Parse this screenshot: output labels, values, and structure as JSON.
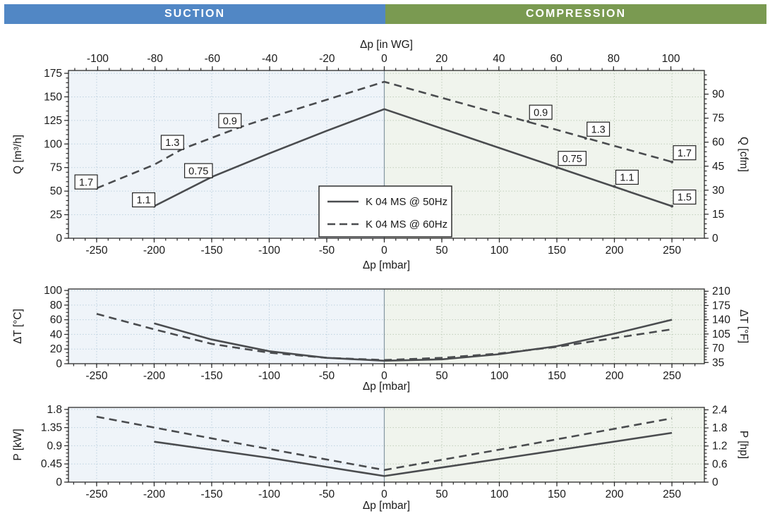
{
  "header": {
    "suction_label": "SUCTION",
    "compression_label": "COMPRESSION",
    "suction_color": "#5187c5",
    "compression_color": "#7a9a51"
  },
  "colors": {
    "line": "#4a4c4f",
    "spine": "#2b2b2b",
    "text": "#1a1a1a",
    "zero_line": "#8497a2",
    "suction_bg": "#eff4f9",
    "compression_bg": "#f0f4ed",
    "suction_grid": "#bdd1df",
    "compression_grid": "#bfcdba",
    "annotation_border": "#222222",
    "annotation_bg": "#ffffff"
  },
  "chart_data": [
    {
      "type": "line",
      "title": "",
      "xlabel": "Δp [mbar]",
      "xlabel_top": "Δp [in WG]",
      "ylabel_left": "Q [m³/h]",
      "ylabel_right": "Q [cfm]",
      "xlim": [
        -274.5,
        278.2
      ],
      "ylim": [
        0,
        178
      ],
      "x_ticks": [
        -250,
        -200,
        -150,
        -100,
        -50,
        0,
        50,
        100,
        150,
        200,
        250
      ],
      "x_minor_step": 10,
      "y_ticks": [
        0,
        25,
        50,
        75,
        100,
        125,
        150,
        175
      ],
      "y_minor_step": 5,
      "top_ticks_inwg": [
        -100,
        -80,
        -60,
        -40,
        -20,
        0,
        20,
        40,
        60,
        80,
        100
      ],
      "top_minor_step_inwg": 4,
      "inwg_to_mbar": 2.49089,
      "right_ticks_cfm": [
        0,
        15,
        30,
        45,
        60,
        75,
        90
      ],
      "right_minor_step_cfm": 3,
      "cfm_to_m3h": 1.699011,
      "grid": true,
      "legend": {
        "position": "center-bottom",
        "items": [
          {
            "label": "K 04 MS @ 50Hz",
            "style": "solid"
          },
          {
            "label": "K 04 MS @ 60Hz",
            "style": "dashed"
          }
        ]
      },
      "series": [
        {
          "name": "K 04 MS @ 50Hz",
          "style": "solid",
          "points": [
            [
              -200,
              34
            ],
            [
              -150,
              65
            ],
            [
              -100,
              90
            ],
            [
              -50,
              114
            ],
            [
              0,
              137
            ],
            [
              250,
              34
            ]
          ]
        },
        {
          "name": "K 04 MS @ 60Hz",
          "style": "dashed",
          "points": [
            [
              -250,
              53
            ],
            [
              -200,
              78
            ],
            [
              -175,
              95
            ],
            [
              -125,
              118
            ],
            [
              -100,
              128
            ],
            [
              0,
              166
            ],
            [
              250,
              81
            ]
          ]
        }
      ],
      "annotations": [
        {
          "label": "1.7",
          "x": -250,
          "y": 53,
          "side": "left"
        },
        {
          "label": "1.1",
          "x": -200,
          "y": 34,
          "side": "left"
        },
        {
          "label": "1.3",
          "x": -175,
          "y": 95,
          "side": "left"
        },
        {
          "label": "0.75",
          "x": -150,
          "y": 65,
          "side": "left"
        },
        {
          "label": "0.9",
          "x": -125,
          "y": 118,
          "side": "left"
        },
        {
          "label": "0.9",
          "x": 125,
          "y": 124,
          "side": "right"
        },
        {
          "label": "0.75",
          "x": 150,
          "y": 75,
          "side": "right"
        },
        {
          "label": "1.3",
          "x": 175,
          "y": 106,
          "side": "right"
        },
        {
          "label": "1.1",
          "x": 200,
          "y": 55,
          "side": "right"
        },
        {
          "label": "1.7",
          "x": 250,
          "y": 81,
          "side": "right"
        },
        {
          "label": "1.5",
          "x": 250,
          "y": 34,
          "side": "right"
        }
      ]
    },
    {
      "type": "line",
      "title": "",
      "xlabel": "Δp [mbar]",
      "ylabel_left": "ΔT [°C]",
      "ylabel_right": "ΔT [°F]",
      "xlim": [
        -274.5,
        278.2
      ],
      "ylim": [
        0,
        102
      ],
      "x_ticks": [
        -250,
        -200,
        -150,
        -100,
        -50,
        0,
        50,
        100,
        150,
        200,
        250
      ],
      "x_minor_step": 10,
      "y_ticks": [
        0,
        20,
        40,
        60,
        80,
        100
      ],
      "y_minor_step": 5,
      "right_ticks_f": [
        35,
        70,
        105,
        140,
        175,
        210
      ],
      "right_minor_step_f": 7,
      "grid": true,
      "series": [
        {
          "name": "K 04 MS @ 50Hz",
          "style": "solid",
          "points": [
            [
              -200,
              55
            ],
            [
              -150,
              33
            ],
            [
              -100,
              17
            ],
            [
              -50,
              8
            ],
            [
              0,
              4
            ],
            [
              50,
              6
            ],
            [
              100,
              13
            ],
            [
              150,
              24
            ],
            [
              200,
              41
            ],
            [
              250,
              60
            ]
          ]
        },
        {
          "name": "K 04 MS @ 60Hz",
          "style": "dashed",
          "points": [
            [
              -250,
              68
            ],
            [
              -200,
              47
            ],
            [
              -150,
              27
            ],
            [
              -100,
              15
            ],
            [
              -50,
              8
            ],
            [
              0,
              5
            ],
            [
              50,
              8
            ],
            [
              100,
              14
            ],
            [
              150,
              23
            ],
            [
              200,
              35
            ],
            [
              250,
              47
            ]
          ]
        }
      ],
      "annotations": []
    },
    {
      "type": "line",
      "title": "",
      "xlabel": "Δp [mbar]",
      "ylabel_left": "P [kW]",
      "ylabel_right": "P [hp]",
      "xlim": [
        -274.5,
        278.2
      ],
      "ylim": [
        0,
        1.85
      ],
      "x_ticks": [
        -250,
        -200,
        -150,
        -100,
        -50,
        0,
        50,
        100,
        150,
        200,
        250
      ],
      "x_minor_step": 10,
      "y_ticks": [
        0,
        0.45,
        0.9,
        1.35,
        1.8
      ],
      "y_minor_step": 0.09,
      "right_ticks_hp": [
        0,
        0.6,
        1.2,
        1.8,
        2.4
      ],
      "right_minor_step_hp": 0.12,
      "hp_to_kw": 0.7457,
      "grid": true,
      "series": [
        {
          "name": "K 04 MS @ 50Hz",
          "style": "solid",
          "points": [
            [
              -200,
              1.0
            ],
            [
              -100,
              0.6
            ],
            [
              0,
              0.15
            ],
            [
              125,
              0.68
            ],
            [
              250,
              1.22
            ]
          ]
        },
        {
          "name": "K 04 MS @ 60Hz",
          "style": "dashed",
          "points": [
            [
              -250,
              1.62
            ],
            [
              -125,
              0.95
            ],
            [
              0,
              0.3
            ],
            [
              125,
              0.93
            ],
            [
              250,
              1.58
            ]
          ]
        }
      ],
      "annotations": []
    }
  ]
}
